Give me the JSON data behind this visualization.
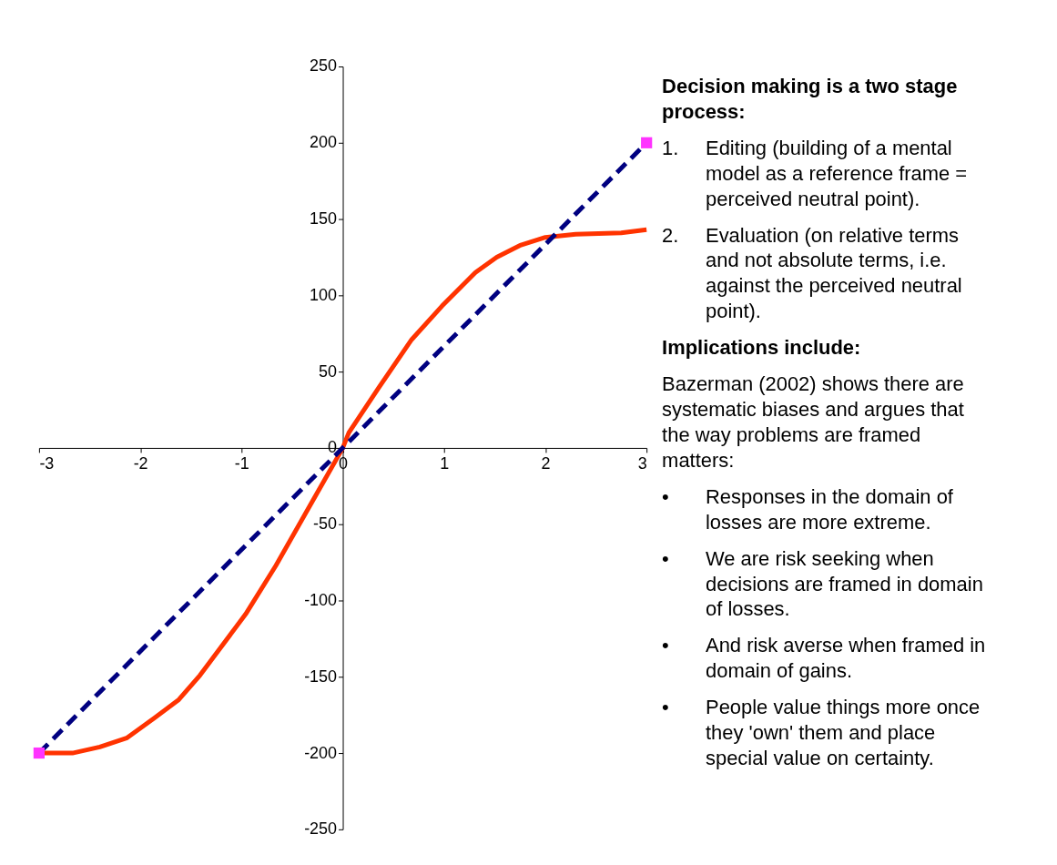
{
  "chart_data": {
    "type": "line",
    "xlim": [
      -3,
      3
    ],
    "ylim": [
      -250,
      250
    ],
    "xticks": [
      -3,
      -2,
      -1,
      0,
      1,
      2,
      3
    ],
    "yticks": [
      -250,
      -200,
      -150,
      -100,
      -50,
      0,
      50,
      100,
      150,
      200,
      250
    ],
    "grid": false,
    "series": [
      {
        "color": "#ff3300",
        "line_style": "solid",
        "marker": "none",
        "x": [
          -3,
          -2.67,
          -2.4,
          -2.13,
          -1.86,
          -1.62,
          -1.41,
          -1.23,
          -0.96,
          -0.66,
          -0.36,
          0,
          0.06,
          0.35,
          0.68,
          0.98,
          1.31,
          1.52,
          1.76,
          2.0,
          2.3,
          2.75,
          3
        ],
        "values": [
          -200,
          -200,
          -196,
          -190,
          -177,
          -165,
          -149,
          -133,
          -109,
          -77,
          -42,
          0,
          10,
          39,
          71,
          93,
          115,
          125,
          133,
          138,
          140,
          141,
          143
        ]
      },
      {
        "color": "#000080",
        "line_style": "dashed",
        "marker": "none",
        "x": [
          -3,
          3
        ],
        "values": [
          -200,
          200
        ]
      },
      {
        "type": "scatter",
        "color": "#ff33ff",
        "marker": "square",
        "x": [
          -3,
          3
        ],
        "values": [
          -200,
          200
        ]
      }
    ],
    "annotations": [
      "Decision making is a two stage process:",
      "1. Editing (building of a mental model as a reference frame = perceived neutral point).",
      "2. Evaluation (on relative terms and not absolute terms, i.e. against the perceived neutral point).",
      "Implications include:",
      "Bazerman (2002) shows there are systematic biases and argues that the way problems are framed matters:",
      "• Responses in the domain of losses are more extreme.",
      "• We are risk seeking when decisions are framed in domain of losses.",
      "• And risk averse when framed in domain of gains.",
      "• People value things more once they 'own' them and place special value on certainty."
    ]
  }
}
